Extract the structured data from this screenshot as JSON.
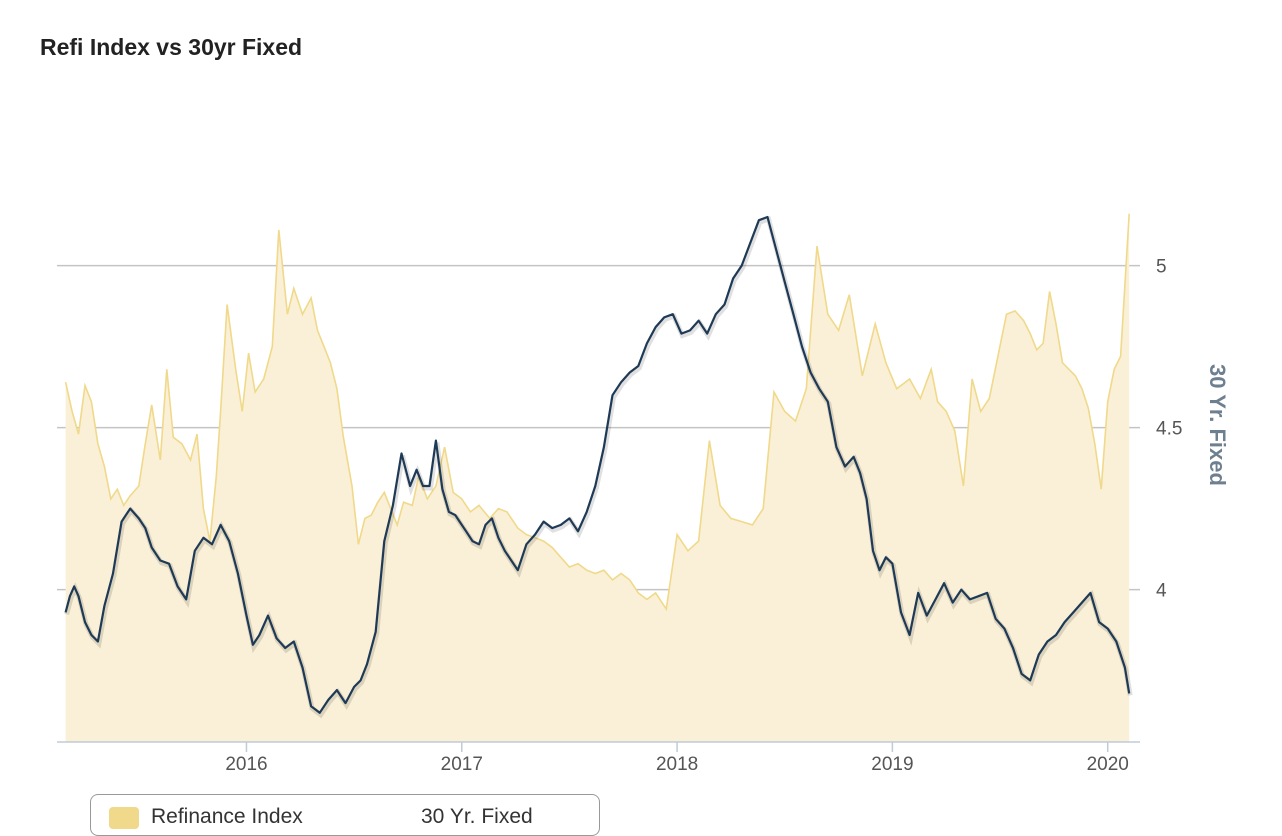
{
  "chart_data": {
    "type": "line",
    "title": "Refi Index vs 30yr Fixed",
    "ylabel_right": "30 Yr. Fixed",
    "x_ticks": [
      "2016",
      "2017",
      "2018",
      "2019",
      "2020"
    ],
    "y_ticks": [
      "4",
      "4.5",
      "5"
    ],
    "ylim": [
      3.53,
      5.48
    ],
    "xlim": [
      2015.12,
      2020.15
    ],
    "grid": true,
    "legend_position": "bottom-left",
    "series": [
      {
        "name": "Refinance Index",
        "style": "area",
        "color": "#f0d98a",
        "fill": "#faf0d7",
        "x": [
          2015.16,
          2015.19,
          2015.22,
          2015.25,
          2015.28,
          2015.31,
          2015.34,
          2015.37,
          2015.4,
          2015.43,
          2015.46,
          2015.5,
          2015.53,
          2015.56,
          2015.6,
          2015.63,
          2015.66,
          2015.7,
          2015.74,
          2015.77,
          2015.8,
          2015.83,
          2015.86,
          2015.88,
          2015.91,
          2015.95,
          2015.98,
          2016.01,
          2016.04,
          2016.08,
          2016.12,
          2016.15,
          2016.19,
          2016.22,
          2016.26,
          2016.3,
          2016.33,
          2016.36,
          2016.39,
          2016.42,
          2016.45,
          2016.49,
          2016.52,
          2016.55,
          2016.58,
          2016.61,
          2016.64,
          2016.67,
          2016.7,
          2016.73,
          2016.77,
          2016.8,
          2016.84,
          2016.88,
          2016.92,
          2016.96,
          2017.0,
          2017.04,
          2017.08,
          2017.13,
          2017.17,
          2017.21,
          2017.26,
          2017.3,
          2017.34,
          2017.38,
          2017.42,
          2017.46,
          2017.5,
          2017.54,
          2017.58,
          2017.62,
          2017.66,
          2017.7,
          2017.74,
          2017.78,
          2017.82,
          2017.86,
          2017.9,
          2017.95,
          2018.0,
          2018.05,
          2018.1,
          2018.15,
          2018.2,
          2018.25,
          2018.3,
          2018.35,
          2018.4,
          2018.45,
          2018.5,
          2018.55,
          2018.6,
          2018.65,
          2018.7,
          2018.75,
          2018.8,
          2018.86,
          2018.92,
          2018.97,
          2019.02,
          2019.08,
          2019.13,
          2019.18,
          2019.21,
          2019.25,
          2019.29,
          2019.33,
          2019.37,
          2019.41,
          2019.45,
          2019.49,
          2019.53,
          2019.57,
          2019.61,
          2019.64,
          2019.67,
          2019.7,
          2019.73,
          2019.76,
          2019.79,
          2019.82,
          2019.85,
          2019.88,
          2019.91,
          2019.94,
          2019.97,
          2020.0,
          2020.03,
          2020.06,
          2020.1
        ],
        "values": [
          4.64,
          4.55,
          4.48,
          4.63,
          4.58,
          4.45,
          4.38,
          4.28,
          4.31,
          4.26,
          4.29,
          4.32,
          4.45,
          4.57,
          4.4,
          4.68,
          4.47,
          4.45,
          4.4,
          4.48,
          4.25,
          4.15,
          4.35,
          4.55,
          4.88,
          4.68,
          4.55,
          4.73,
          4.61,
          4.65,
          4.75,
          5.11,
          4.85,
          4.93,
          4.85,
          4.9,
          4.8,
          4.75,
          4.7,
          4.62,
          4.47,
          4.32,
          4.14,
          4.22,
          4.23,
          4.27,
          4.3,
          4.25,
          4.2,
          4.27,
          4.26,
          4.35,
          4.28,
          4.32,
          4.44,
          4.3,
          4.28,
          4.24,
          4.26,
          4.22,
          4.25,
          4.24,
          4.19,
          4.17,
          4.16,
          4.15,
          4.13,
          4.1,
          4.07,
          4.08,
          4.06,
          4.05,
          4.06,
          4.03,
          4.05,
          4.03,
          3.99,
          3.97,
          3.99,
          3.94,
          4.17,
          4.12,
          4.15,
          4.46,
          4.26,
          4.22,
          4.21,
          4.2,
          4.25,
          4.61,
          4.55,
          4.52,
          4.62,
          5.06,
          4.85,
          4.8,
          4.91,
          4.66,
          4.82,
          4.7,
          4.62,
          4.65,
          4.59,
          4.68,
          4.58,
          4.55,
          4.49,
          4.32,
          4.65,
          4.55,
          4.59,
          4.72,
          4.85,
          4.86,
          4.83,
          4.79,
          4.74,
          4.76,
          4.92,
          4.82,
          4.7,
          4.68,
          4.66,
          4.62,
          4.56,
          4.45,
          4.31,
          4.58,
          4.68,
          4.72,
          5.16
        ]
      },
      {
        "name": "30 Yr. Fixed",
        "style": "line",
        "color": "#1f3a56",
        "x": [
          2015.16,
          2015.18,
          2015.2,
          2015.22,
          2015.25,
          2015.28,
          2015.31,
          2015.34,
          2015.38,
          2015.42,
          2015.46,
          2015.5,
          2015.53,
          2015.56,
          2015.6,
          2015.64,
          2015.68,
          2015.72,
          2015.76,
          2015.8,
          2015.84,
          2015.88,
          2015.92,
          2015.96,
          2016.0,
          2016.03,
          2016.06,
          2016.1,
          2016.14,
          2016.18,
          2016.22,
          2016.26,
          2016.3,
          2016.34,
          2016.38,
          2016.42,
          2016.46,
          2016.5,
          2016.53,
          2016.56,
          2016.6,
          2016.64,
          2016.68,
          2016.72,
          2016.76,
          2016.79,
          2016.82,
          2016.85,
          2016.88,
          2016.91,
          2016.94,
          2016.97,
          2016.99,
          2017.02,
          2017.05,
          2017.08,
          2017.11,
          2017.14,
          2017.17,
          2017.2,
          2017.23,
          2017.26,
          2017.3,
          2017.34,
          2017.38,
          2017.42,
          2017.46,
          2017.5,
          2017.54,
          2017.58,
          2017.62,
          2017.66,
          2017.7,
          2017.74,
          2017.78,
          2017.82,
          2017.86,
          2017.9,
          2017.94,
          2017.98,
          2018.02,
          2018.06,
          2018.1,
          2018.14,
          2018.18,
          2018.22,
          2018.26,
          2018.3,
          2018.34,
          2018.38,
          2018.42,
          2018.46,
          2018.5,
          2018.54,
          2018.58,
          2018.62,
          2018.66,
          2018.7,
          2018.74,
          2018.78,
          2018.82,
          2018.85,
          2018.88,
          2018.91,
          2018.94,
          2018.97,
          2019.0,
          2019.04,
          2019.08,
          2019.12,
          2019.16,
          2019.2,
          2019.24,
          2019.28,
          2019.32,
          2019.36,
          2019.4,
          2019.44,
          2019.48,
          2019.52,
          2019.56,
          2019.6,
          2019.64,
          2019.68,
          2019.72,
          2019.76,
          2019.8,
          2019.84,
          2019.88,
          2019.92,
          2019.96,
          2020.0,
          2020.04,
          2020.08,
          2020.1
        ],
        "values": [
          3.93,
          3.98,
          4.01,
          3.98,
          3.9,
          3.86,
          3.84,
          3.95,
          4.05,
          4.21,
          4.25,
          4.22,
          4.19,
          4.13,
          4.09,
          4.08,
          4.01,
          3.97,
          4.12,
          4.16,
          4.14,
          4.2,
          4.15,
          4.05,
          3.92,
          3.83,
          3.86,
          3.92,
          3.85,
          3.82,
          3.84,
          3.76,
          3.64,
          3.62,
          3.66,
          3.69,
          3.65,
          3.7,
          3.72,
          3.77,
          3.87,
          4.15,
          4.26,
          4.42,
          4.32,
          4.37,
          4.32,
          4.32,
          4.46,
          4.31,
          4.24,
          4.23,
          4.21,
          4.18,
          4.15,
          4.14,
          4.2,
          4.22,
          4.16,
          4.12,
          4.09,
          4.06,
          4.14,
          4.17,
          4.21,
          4.19,
          4.2,
          4.22,
          4.18,
          4.24,
          4.32,
          4.44,
          4.6,
          4.64,
          4.67,
          4.69,
          4.76,
          4.81,
          4.84,
          4.85,
          4.79,
          4.8,
          4.83,
          4.79,
          4.85,
          4.88,
          4.96,
          5.0,
          5.07,
          5.14,
          5.15,
          5.05,
          4.95,
          4.85,
          4.75,
          4.67,
          4.62,
          4.58,
          4.44,
          4.38,
          4.41,
          4.36,
          4.28,
          4.12,
          4.06,
          4.1,
          4.08,
          3.93,
          3.86,
          3.99,
          3.92,
          3.97,
          4.02,
          3.96,
          4.0,
          3.97,
          3.98,
          3.99,
          3.91,
          3.88,
          3.82,
          3.74,
          3.72,
          3.8,
          3.84,
          3.86,
          3.9,
          3.93,
          3.96,
          3.99,
          3.9,
          3.88,
          3.84,
          3.76,
          3.68
        ]
      }
    ]
  }
}
